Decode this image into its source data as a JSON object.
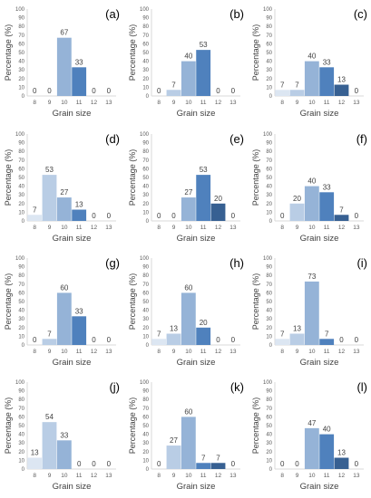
{
  "colors": [
    "#dce6f2",
    "#b9cde5",
    "#95b3d7",
    "#4f81bd",
    "#376092",
    "#1f3864"
  ],
  "axis_color": "#d9d9d9",
  "chart_data": [
    {
      "type": "bar",
      "panel": "(a)",
      "categories": [
        "8",
        "9",
        "10",
        "11",
        "12",
        "13"
      ],
      "values": [
        0,
        0,
        67,
        33,
        0,
        0
      ],
      "labels": [
        "0",
        "0",
        "67",
        "33",
        "0",
        "0"
      ],
      "xlabel": "Grain size",
      "ylabel": "Percentage (%)",
      "ylim": [
        0,
        100
      ],
      "yticks": [
        "0",
        "10",
        "20",
        "30",
        "40",
        "50",
        "60",
        "70",
        "80",
        "90",
        "100"
      ],
      "grid": false
    },
    {
      "type": "bar",
      "panel": "(b)",
      "categories": [
        "8",
        "9",
        "10",
        "11",
        "12",
        "13"
      ],
      "values": [
        0,
        7,
        40,
        53,
        0,
        0
      ],
      "labels": [
        "0",
        "7",
        "40",
        "53",
        "0",
        "0"
      ],
      "xlabel": "Grain size",
      "ylabel": "Percentage (%)",
      "ylim": [
        0,
        100
      ],
      "yticks": [
        "0",
        "10",
        "20",
        "30",
        "40",
        "50",
        "60",
        "70",
        "80",
        "90",
        "100"
      ],
      "grid": false
    },
    {
      "type": "bar",
      "panel": "(c)",
      "categories": [
        "8",
        "9",
        "10",
        "11",
        "12",
        "13"
      ],
      "values": [
        7,
        7,
        40,
        33,
        13,
        0
      ],
      "labels": [
        "7",
        "7",
        "40",
        "33",
        "13",
        "0"
      ],
      "xlabel": "Grain size",
      "ylabel": "Percentage (%)",
      "ylim": [
        0,
        100
      ],
      "yticks": [
        "0",
        "10",
        "20",
        "30",
        "40",
        "50",
        "60",
        "70",
        "80",
        "90",
        "100"
      ],
      "grid": false
    },
    {
      "type": "bar",
      "panel": "(d)",
      "categories": [
        "8",
        "9",
        "10",
        "11",
        "12",
        "13"
      ],
      "values": [
        7,
        53,
        27,
        13,
        0,
        0
      ],
      "labels": [
        "7",
        "53",
        "27",
        "13",
        "0",
        "0"
      ],
      "xlabel": "Grain size",
      "ylabel": "Percentage (%)",
      "ylim": [
        0,
        100
      ],
      "yticks": [
        "0",
        "10",
        "20",
        "30",
        "40",
        "50",
        "60",
        "70",
        "80",
        "90",
        "100"
      ],
      "grid": false
    },
    {
      "type": "bar",
      "panel": "(e)",
      "categories": [
        "8",
        "9",
        "10",
        "11",
        "12",
        "13"
      ],
      "values": [
        0,
        0,
        27,
        53,
        20,
        0
      ],
      "labels": [
        "0",
        "0",
        "27",
        "53",
        "20",
        "0"
      ],
      "xlabel": "Grain size",
      "ylabel": "Percentage (%)",
      "ylim": [
        0,
        100
      ],
      "yticks": [
        "0",
        "10",
        "20",
        "30",
        "40",
        "50",
        "60",
        "70",
        "80",
        "90",
        "100"
      ],
      "grid": false
    },
    {
      "type": "bar",
      "panel": "(f)",
      "categories": [
        "8",
        "9",
        "10",
        "11",
        "12",
        "13"
      ],
      "values": [
        0,
        20,
        40,
        33,
        7,
        0
      ],
      "labels": [
        "0",
        "20",
        "40",
        "33",
        "7",
        "0"
      ],
      "xlabel": "Grain size",
      "ylabel": "Percentage (%)",
      "ylim": [
        0,
        100
      ],
      "yticks": [
        "0",
        "10",
        "20",
        "30",
        "40",
        "50",
        "60",
        "70",
        "80",
        "90",
        "100"
      ],
      "grid": false
    },
    {
      "type": "bar",
      "panel": "(g)",
      "categories": [
        "8",
        "9",
        "10",
        "11",
        "12",
        "13"
      ],
      "values": [
        0,
        7,
        60,
        33,
        0,
        0
      ],
      "labels": [
        "0",
        "7",
        "60",
        "33",
        "0",
        "0"
      ],
      "xlabel": "Grain size",
      "ylabel": "Percentage (%)",
      "ylim": [
        0,
        100
      ],
      "yticks": [
        "0",
        "10",
        "20",
        "30",
        "40",
        "50",
        "60",
        "70",
        "80",
        "90",
        "100"
      ],
      "grid": false
    },
    {
      "type": "bar",
      "panel": "(h)",
      "categories": [
        "8",
        "9",
        "10",
        "11",
        "12",
        "13"
      ],
      "values": [
        7,
        13,
        60,
        20,
        0,
        0
      ],
      "labels": [
        "7",
        "13",
        "60",
        "20",
        "0",
        "0"
      ],
      "xlabel": "Grain size",
      "ylabel": "Percentage (%)",
      "ylim": [
        0,
        100
      ],
      "yticks": [
        "0",
        "10",
        "20",
        "30",
        "40",
        "50",
        "60",
        "70",
        "80",
        "90",
        "100"
      ],
      "grid": false
    },
    {
      "type": "bar",
      "panel": "(i)",
      "categories": [
        "8",
        "9",
        "10",
        "11",
        "12",
        "13"
      ],
      "values": [
        7,
        13,
        73,
        7,
        0,
        0
      ],
      "labels": [
        "7",
        "13",
        "73",
        "7",
        "0",
        "0"
      ],
      "xlabel": "Grain size",
      "ylabel": "Percentage (%)",
      "ylim": [
        0,
        100
      ],
      "yticks": [
        "0",
        "10",
        "20",
        "30",
        "40",
        "50",
        "60",
        "70",
        "80",
        "90",
        "100"
      ],
      "grid": false
    },
    {
      "type": "bar",
      "panel": "(j)",
      "categories": [
        "8",
        "9",
        "10",
        "11",
        "12",
        "13"
      ],
      "values": [
        13,
        54,
        33,
        0,
        0,
        0
      ],
      "labels": [
        "13",
        "54",
        "33",
        "0",
        "0",
        "0"
      ],
      "xlabel": "Grain size",
      "ylabel": "Percentage (%)",
      "ylim": [
        0,
        100
      ],
      "yticks": [
        "0",
        "10",
        "20",
        "30",
        "40",
        "50",
        "60",
        "70",
        "80",
        "90",
        "100"
      ],
      "grid": false
    },
    {
      "type": "bar",
      "panel": "(k)",
      "categories": [
        "8",
        "9",
        "10",
        "11",
        "12",
        "13"
      ],
      "values": [
        0,
        27,
        60,
        7,
        7,
        0
      ],
      "labels": [
        "0",
        "27",
        "60",
        "7",
        "7",
        "0"
      ],
      "xlabel": "Grain size",
      "ylabel": "Percentage (%)",
      "ylim": [
        0,
        100
      ],
      "yticks": [
        "0",
        "10",
        "20",
        "30",
        "40",
        "50",
        "60",
        "70",
        "80",
        "90",
        "100"
      ],
      "grid": false
    },
    {
      "type": "bar",
      "panel": "(l)",
      "categories": [
        "8",
        "9",
        "10",
        "11",
        "12",
        "13"
      ],
      "values": [
        0,
        0,
        47,
        40,
        13,
        0
      ],
      "labels": [
        "0",
        "0",
        "47",
        "40",
        "13",
        "0"
      ],
      "xlabel": "Grain size",
      "ylabel": "Percentage (%)",
      "ylim": [
        0,
        100
      ],
      "yticks": [
        "0",
        "10",
        "20",
        "30",
        "40",
        "50",
        "60",
        "70",
        "80",
        "90",
        "100"
      ],
      "grid": false
    }
  ]
}
